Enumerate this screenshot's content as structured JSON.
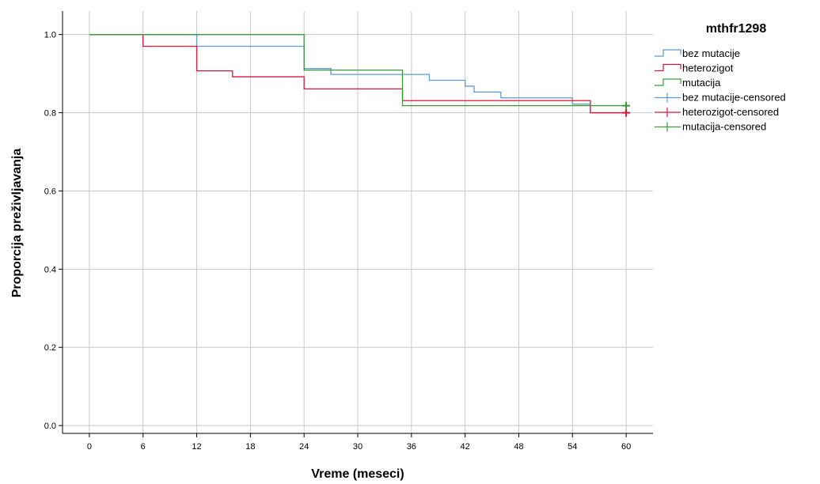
{
  "chart_data": {
    "type": "line",
    "title": "",
    "xlabel": "Vreme (meseci)",
    "ylabel": "Proporcija preživljavanja",
    "xlim": [
      -3,
      63
    ],
    "ylim": [
      -0.02,
      1.06
    ],
    "x_ticks": [
      0,
      6,
      12,
      18,
      24,
      30,
      36,
      42,
      48,
      54,
      60
    ],
    "y_ticks": [
      0.0,
      0.2,
      0.4,
      0.6,
      0.8,
      1.0
    ],
    "x_tick_labels": [
      "0",
      "6",
      "12",
      "18",
      "24",
      "30",
      "36",
      "42",
      "48",
      "54",
      "60"
    ],
    "y_tick_labels": [
      "0.0",
      "0.2",
      "0.4",
      "0.6",
      "0.8",
      "1.0"
    ],
    "grid": true,
    "legend": {
      "title": "mthfr1298",
      "position": "right",
      "entries": [
        "bez mutacije",
        "heterozigot",
        "mutacija",
        "bez mutacije-censored",
        "heterozigot-censored",
        "mutacija-censored"
      ]
    },
    "series": [
      {
        "name": "bez mutacije",
        "color": "#5b9bd5",
        "step_x": [
          0,
          12,
          24,
          27,
          35,
          38,
          42,
          43,
          46,
          54,
          56,
          60
        ],
        "step_y": [
          1.0,
          0.97,
          0.913,
          0.898,
          0.898,
          0.883,
          0.868,
          0.853,
          0.838,
          0.822,
          0.8,
          0.8
        ],
        "censored_x": [
          60
        ],
        "censored_y": [
          0.8
        ]
      },
      {
        "name": "heterozigot",
        "color": "#dc143c",
        "step_x": [
          0,
          6,
          12,
          16,
          24,
          35,
          56,
          60
        ],
        "step_y": [
          1.0,
          0.97,
          0.907,
          0.892,
          0.861,
          0.831,
          0.8,
          0.8
        ],
        "censored_x": [
          60
        ],
        "censored_y": [
          0.8
        ]
      },
      {
        "name": "mutacija",
        "color": "#3a9a3a",
        "step_x": [
          0,
          24,
          35,
          60
        ],
        "step_y": [
          1.0,
          0.909,
          0.818,
          0.818
        ],
        "censored_x": [
          60
        ],
        "censored_y": [
          0.818
        ]
      }
    ]
  }
}
